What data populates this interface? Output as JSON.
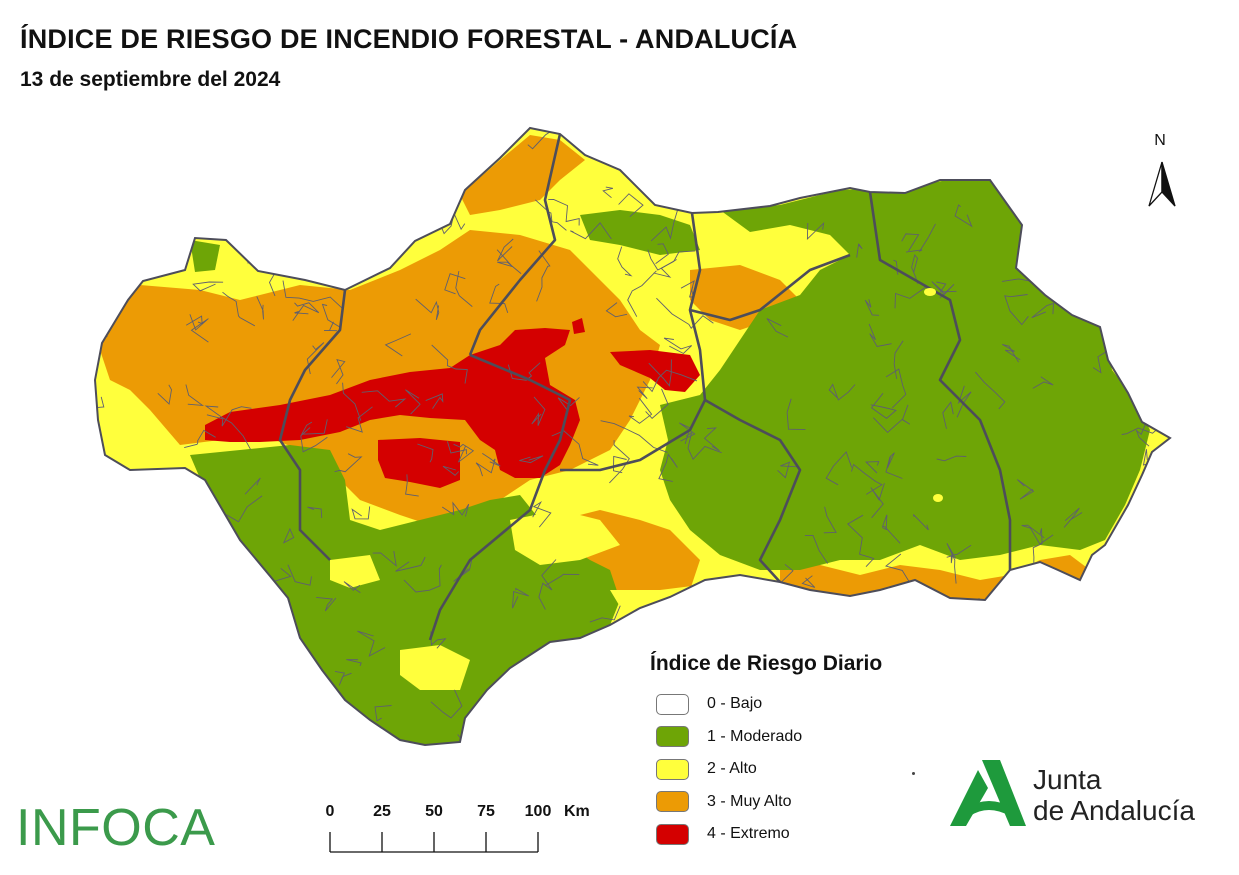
{
  "header": {
    "title": "ÍNDICE DE RIESGO DE INCENDIO FORESTAL - ANDALUCÍA",
    "date": "13 de septiembre del 2024"
  },
  "north_arrow": {
    "label": "N"
  },
  "legend": {
    "title": "Índice de Riesgo Diario",
    "items": [
      {
        "label": "0 - Bajo",
        "color": "#ffffff"
      },
      {
        "label": "1 - Moderado",
        "color": "#6ea506"
      },
      {
        "label": "2 - Alto",
        "color": "#ffff3c"
      },
      {
        "label": "3 - Muy Alto",
        "color": "#ec9b05"
      },
      {
        "label": "4 - Extremo",
        "color": "#d40000"
      }
    ]
  },
  "scale_bar": {
    "ticks": [
      "0",
      "25",
      "50",
      "75",
      "100"
    ],
    "unit": "Km"
  },
  "logos": {
    "infoca": "INFOCA",
    "junta_line1": "Junta",
    "junta_line2": "de Andalucía"
  },
  "colors": {
    "moderado": "#6ea506",
    "alto": "#ffff3c",
    "muy_alto": "#ec9b05",
    "extremo": "#d40000",
    "border": "#4d4d5a",
    "infoca_green": "#3b9a4b",
    "junta_green": "#1e9a3c"
  }
}
